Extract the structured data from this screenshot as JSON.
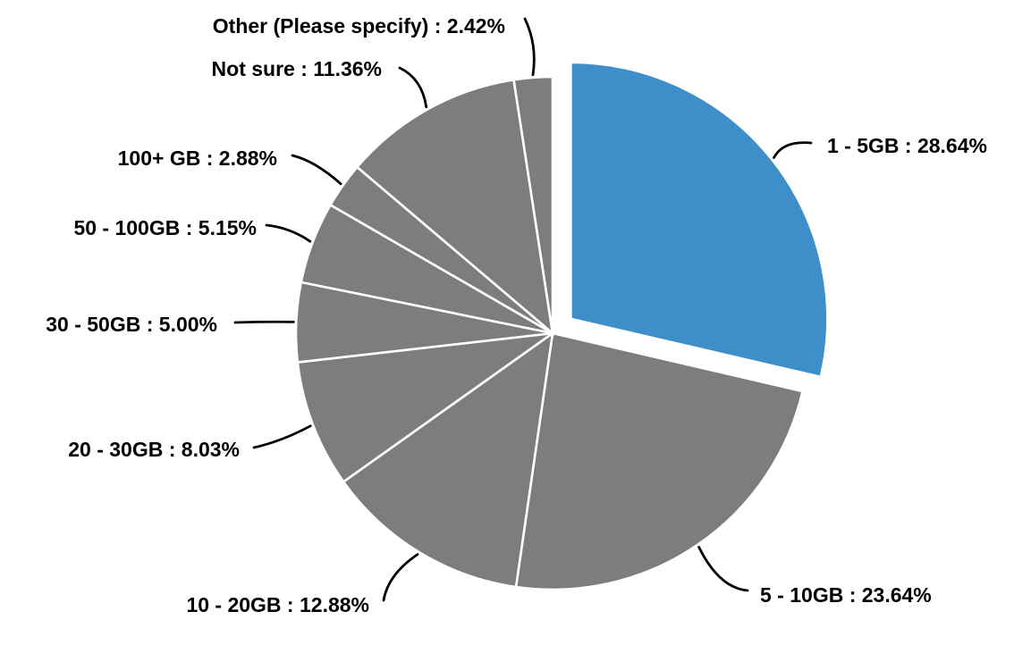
{
  "chart_data": {
    "type": "pie",
    "title": "",
    "legend": false,
    "label_style": "callout",
    "start_angle_deg": 0,
    "direction": "clockwise",
    "categories": [
      "1 - 5GB",
      "5 - 10GB",
      "10 - 20GB",
      "20 - 30GB",
      "30 - 50GB",
      "50 - 100GB",
      "100+ GB",
      "Not sure",
      "Other (Please specify)"
    ],
    "values": [
      28.64,
      23.64,
      12.88,
      8.03,
      5.0,
      5.15,
      2.88,
      11.36,
      2.42
    ],
    "slices": [
      {
        "name": "1 - 5GB",
        "value": 28.64,
        "label": "1 - 5GB : 28.64%",
        "color": "#3E8EC9",
        "exploded": true
      },
      {
        "name": "5 - 10GB",
        "value": 23.64,
        "label": "5 - 10GB : 23.64%",
        "color": "#7D7D7D",
        "exploded": false
      },
      {
        "name": "10 - 20GB",
        "value": 12.88,
        "label": "10 - 20GB : 12.88%",
        "color": "#7D7D7D",
        "exploded": false
      },
      {
        "name": "20 - 30GB",
        "value": 8.03,
        "label": "20 - 30GB : 8.03%",
        "color": "#7D7D7D",
        "exploded": false
      },
      {
        "name": "30 - 50GB",
        "value": 5.0,
        "label": "30 - 50GB : 5.00%",
        "color": "#7D7D7D",
        "exploded": false
      },
      {
        "name": "50 - 100GB",
        "value": 5.15,
        "label": "50 - 100GB : 5.15%",
        "color": "#7D7D7D",
        "exploded": false
      },
      {
        "name": "100+ GB",
        "value": 2.88,
        "label": "100+ GB : 2.88%",
        "color": "#7D7D7D",
        "exploded": false
      },
      {
        "name": "Not sure",
        "value": 11.36,
        "label": "Not sure : 11.36%",
        "color": "#7D7D7D",
        "exploded": false
      },
      {
        "name": "Other (Please specify)",
        "value": 2.42,
        "label": "Other (Please specify) : 2.42%",
        "color": "#7D7D7D",
        "exploded": false
      }
    ],
    "colors": {
      "highlight": "#3E8EC9",
      "default": "#7D7D7D",
      "separator": "#FFFFFF",
      "leader_line": "#000000",
      "label_text": "#000000",
      "background": "#FFFFFF"
    }
  }
}
